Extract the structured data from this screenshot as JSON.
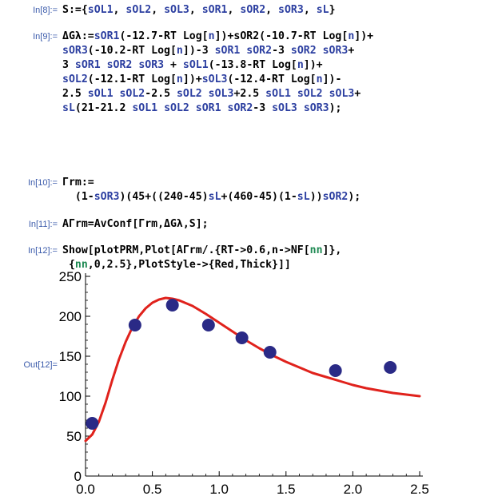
{
  "cells": [
    {
      "label": "In[8]:=",
      "lines": [
        [
          [
            "S:={",
            "plain"
          ],
          [
            "sOL1",
            "blue"
          ],
          [
            ", ",
            "plain"
          ],
          [
            "sOL2",
            "blue"
          ],
          [
            ", ",
            "plain"
          ],
          [
            "sOL3",
            "blue"
          ],
          [
            ", ",
            "plain"
          ],
          [
            "sOR1",
            "blue"
          ],
          [
            ", ",
            "plain"
          ],
          [
            "sOR2",
            "blue"
          ],
          [
            ", ",
            "plain"
          ],
          [
            "sOR3",
            "blue"
          ],
          [
            ", ",
            "plain"
          ],
          [
            "sL",
            "blue"
          ],
          [
            "}",
            "plain"
          ]
        ]
      ]
    },
    {
      "label": "In[9]:=",
      "lines": [
        [
          [
            "ΔGλ:=",
            "plain"
          ],
          [
            "sOR1",
            "blue"
          ],
          [
            "(-12.7-RT Log[",
            "plain"
          ],
          [
            "n",
            "blue"
          ],
          [
            "])+sOR2(-10.7-RT Log[",
            "plain"
          ],
          [
            "n",
            "blue"
          ],
          [
            "])+",
            "plain"
          ]
        ],
        [
          [
            "sOR3",
            "blue"
          ],
          [
            "(-10.2-RT Log[",
            "plain"
          ],
          [
            "n",
            "blue"
          ],
          [
            "])-3 ",
            "plain"
          ],
          [
            "sOR1",
            "blue"
          ],
          [
            " ",
            "plain"
          ],
          [
            "sOR2",
            "blue"
          ],
          [
            "-3 ",
            "plain"
          ],
          [
            "sOR2",
            "blue"
          ],
          [
            " ",
            "plain"
          ],
          [
            "sOR3",
            "blue"
          ],
          [
            "+",
            "plain"
          ]
        ],
        [
          [
            "3 ",
            "plain"
          ],
          [
            "sOR1",
            "blue"
          ],
          [
            " ",
            "plain"
          ],
          [
            "sOR2",
            "blue"
          ],
          [
            " ",
            "plain"
          ],
          [
            "sOR3",
            "blue"
          ],
          [
            " + ",
            "plain"
          ],
          [
            "sOL1",
            "blue"
          ],
          [
            "(-13.8-RT Log[",
            "plain"
          ],
          [
            "n",
            "blue"
          ],
          [
            "])+",
            "plain"
          ]
        ],
        [
          [
            "sOL2",
            "blue"
          ],
          [
            "(-12.1-RT Log[",
            "plain"
          ],
          [
            "n",
            "blue"
          ],
          [
            "])+",
            "plain"
          ],
          [
            "sOL3",
            "blue"
          ],
          [
            "(-12.4-RT Log[",
            "plain"
          ],
          [
            "n",
            "blue"
          ],
          [
            "])-",
            "plain"
          ]
        ],
        [
          [
            "2.5 ",
            "plain"
          ],
          [
            "sOL1",
            "blue"
          ],
          [
            " ",
            "plain"
          ],
          [
            "sOL2",
            "blue"
          ],
          [
            "-2.5 ",
            "plain"
          ],
          [
            "sOL2",
            "blue"
          ],
          [
            " ",
            "plain"
          ],
          [
            "sOL3",
            "blue"
          ],
          [
            "+2.5 ",
            "plain"
          ],
          [
            "sOL1",
            "blue"
          ],
          [
            " ",
            "plain"
          ],
          [
            "sOL2",
            "blue"
          ],
          [
            " ",
            "plain"
          ],
          [
            "sOL3",
            "blue"
          ],
          [
            "+",
            "plain"
          ]
        ],
        [
          [
            "sL",
            "blue"
          ],
          [
            "(21-21.2 ",
            "plain"
          ],
          [
            "sOL1",
            "blue"
          ],
          [
            " ",
            "plain"
          ],
          [
            "sOL2",
            "blue"
          ],
          [
            " ",
            "plain"
          ],
          [
            "sOR1",
            "blue"
          ],
          [
            " ",
            "plain"
          ],
          [
            "sOR2",
            "blue"
          ],
          [
            "-3 ",
            "plain"
          ],
          [
            "sOL3",
            "blue"
          ],
          [
            " ",
            "plain"
          ],
          [
            "sOR3",
            "blue"
          ],
          [
            ");",
            "plain"
          ]
        ]
      ]
    },
    {
      "label": "In[10]:=",
      "lines": [
        [
          [
            "Γrm:=",
            "plain"
          ]
        ],
        [
          [
            "  (1-",
            "plain"
          ],
          [
            "sOR3",
            "blue"
          ],
          [
            ")(45+((240-45)",
            "plain"
          ],
          [
            "sL",
            "blue"
          ],
          [
            "+(460-45)(1-",
            "plain"
          ],
          [
            "sL",
            "blue"
          ],
          [
            "))",
            "plain"
          ],
          [
            "sOR2",
            "blue"
          ],
          [
            ");",
            "plain"
          ]
        ]
      ]
    },
    {
      "label": "In[11]:=",
      "lines": [
        [
          [
            "AΓrm=AvConf[Γrm,ΔGλ,S];",
            "plain"
          ]
        ]
      ]
    },
    {
      "label": "In[12]:=",
      "lines": [
        [
          [
            "Show[plotPRM,Plot[AΓrm/.{RT->0.6,n->NF[",
            "plain"
          ],
          [
            "nn",
            "green"
          ],
          [
            "]},",
            "plain"
          ]
        ],
        [
          [
            " {",
            "plain"
          ],
          [
            "nn",
            "green"
          ],
          [
            ",0,2.5},PlotStyle->{Red,Thick}]]",
            "plain"
          ]
        ]
      ]
    }
  ],
  "output_label": "Out[12]=",
  "chart_data": {
    "type": "scatter",
    "xlim": [
      0,
      2.5
    ],
    "ylim": [
      0,
      250
    ],
    "x_ticks": [
      "0.0",
      "0.5",
      "1.0",
      "1.5",
      "2.0",
      "2.5"
    ],
    "y_ticks": [
      "0",
      "50",
      "100",
      "150",
      "200",
      "250"
    ],
    "x_tick_values": [
      0,
      0.5,
      1.0,
      1.5,
      2.0,
      2.5
    ],
    "y_tick_values": [
      0,
      50,
      100,
      150,
      200,
      250
    ],
    "points": [
      {
        "x": 0.05,
        "y": 66
      },
      {
        "x": 0.37,
        "y": 189
      },
      {
        "x": 0.65,
        "y": 214
      },
      {
        "x": 0.92,
        "y": 189
      },
      {
        "x": 1.17,
        "y": 173
      },
      {
        "x": 1.38,
        "y": 155
      },
      {
        "x": 1.87,
        "y": 132
      },
      {
        "x": 2.28,
        "y": 136
      }
    ],
    "curve": [
      {
        "x": 0.0,
        "y": 44
      },
      {
        "x": 0.05,
        "y": 52
      },
      {
        "x": 0.1,
        "y": 68
      },
      {
        "x": 0.15,
        "y": 92
      },
      {
        "x": 0.2,
        "y": 120
      },
      {
        "x": 0.25,
        "y": 146
      },
      {
        "x": 0.3,
        "y": 168
      },
      {
        "x": 0.35,
        "y": 186
      },
      {
        "x": 0.4,
        "y": 200
      },
      {
        "x": 0.45,
        "y": 210
      },
      {
        "x": 0.5,
        "y": 217
      },
      {
        "x": 0.55,
        "y": 221
      },
      {
        "x": 0.6,
        "y": 223
      },
      {
        "x": 0.65,
        "y": 222
      },
      {
        "x": 0.7,
        "y": 220
      },
      {
        "x": 0.8,
        "y": 213
      },
      {
        "x": 0.9,
        "y": 203
      },
      {
        "x": 1.0,
        "y": 192
      },
      {
        "x": 1.1,
        "y": 181
      },
      {
        "x": 1.2,
        "y": 170
      },
      {
        "x": 1.3,
        "y": 160
      },
      {
        "x": 1.4,
        "y": 151
      },
      {
        "x": 1.5,
        "y": 143
      },
      {
        "x": 1.6,
        "y": 136
      },
      {
        "x": 1.7,
        "y": 129
      },
      {
        "x": 1.8,
        "y": 124
      },
      {
        "x": 1.9,
        "y": 119
      },
      {
        "x": 2.0,
        "y": 114
      },
      {
        "x": 2.1,
        "y": 110
      },
      {
        "x": 2.2,
        "y": 107
      },
      {
        "x": 2.3,
        "y": 104
      },
      {
        "x": 2.4,
        "y": 102
      },
      {
        "x": 2.5,
        "y": 100
      }
    ],
    "colors": {
      "points": "#2a2a86",
      "curve": "#e0221c",
      "axis": "#000000"
    },
    "grid": false
  },
  "colors": {
    "label": "#3b5bab",
    "symbol_blue": "#2b3ea0",
    "symbol_green": "#1f8a53"
  }
}
